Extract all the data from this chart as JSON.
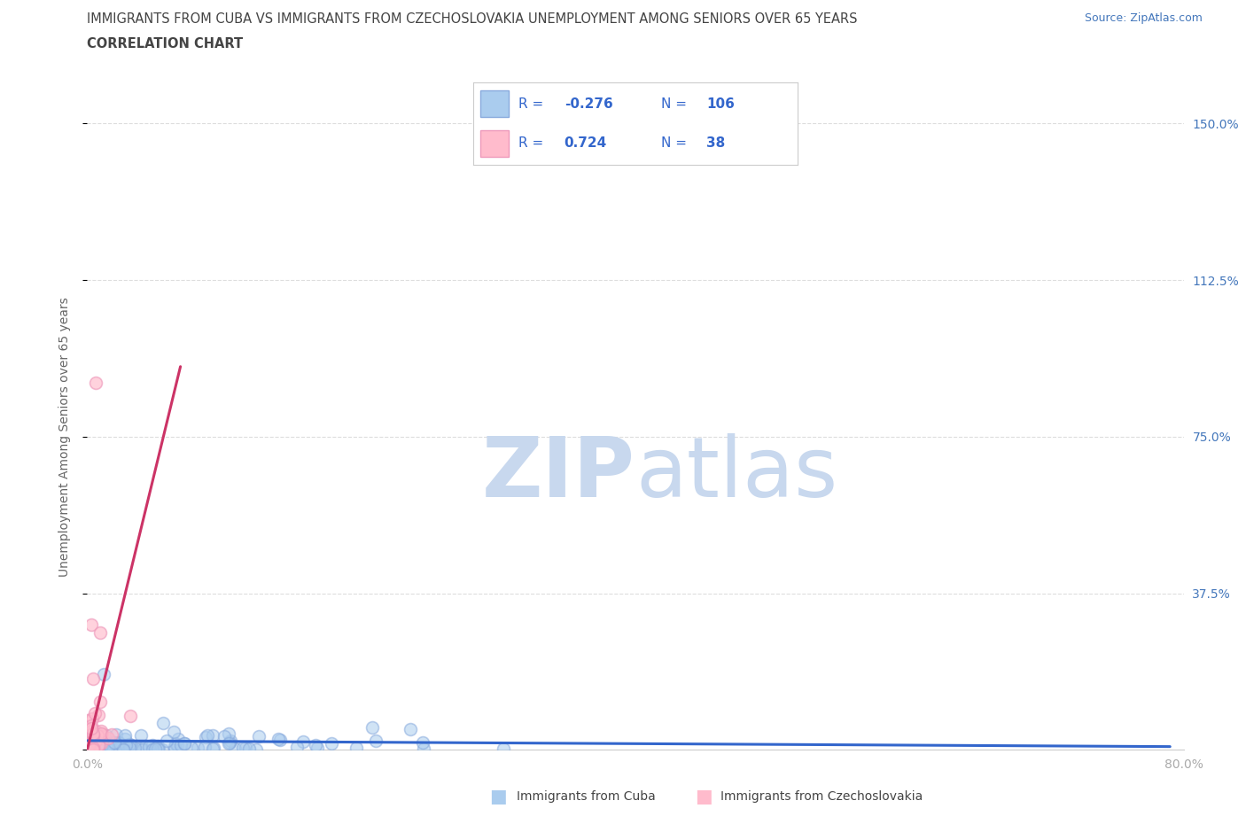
{
  "title_line1": "IMMIGRANTS FROM CUBA VS IMMIGRANTS FROM CZECHOSLOVAKIA UNEMPLOYMENT AMONG SENIORS OVER 65 YEARS",
  "title_line2": "CORRELATION CHART",
  "source_text": "Source: ZipAtlas.com",
  "ylabel": "Unemployment Among Seniors over 65 years",
  "xlim": [
    0.0,
    0.8
  ],
  "ylim": [
    0.0,
    1.5
  ],
  "ytick_positions": [
    0.0,
    0.375,
    0.75,
    1.125,
    1.5
  ],
  "ytick_labels_right": [
    "",
    "37.5%",
    "75.0%",
    "112.5%",
    "150.0%"
  ],
  "grid_color": "#dddddd",
  "grid_style": "--",
  "background_color": "#ffffff",
  "title_color": "#444444",
  "source_color": "#4477bb",
  "axis_label_color": "#666666",
  "tick_label_color": "#aaaaaa",
  "right_tick_color": "#4477bb",
  "watermark_text_zip": "ZIP",
  "watermark_text_atlas": "atlas",
  "watermark_color": "#c8d8ee",
  "cuba_color": "#aaccee",
  "cuba_edge_color": "#88aadd",
  "czech_color": "#ffbbcc",
  "czech_edge_color": "#ee99bb",
  "cuba_trend_color": "#3366cc",
  "czech_trend_color": "#cc3366",
  "legend_R_cuba": "-0.276",
  "legend_N_cuba": "106",
  "legend_R_czech": "0.724",
  "legend_N_czech": "38",
  "legend_text_color": "#3366cc",
  "legend_border_color": "#cccccc",
  "cuba_alpha": 0.55,
  "czech_alpha": 0.65,
  "cuba_seed": 42,
  "czech_seed": 123,
  "cuba_N": 106,
  "czech_N": 38,
  "marker_size": 100,
  "bottom_legend_color": "#444444"
}
